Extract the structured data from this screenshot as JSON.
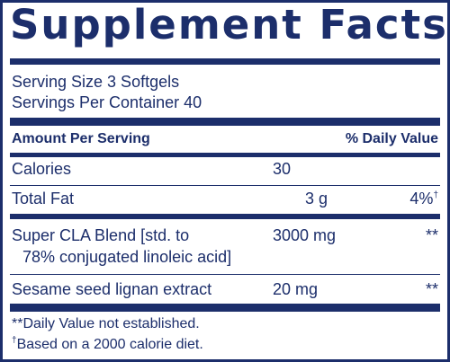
{
  "title": "Supplement Facts",
  "serving_size": "Serving Size 3 Softgels",
  "servings_per_container": "Servings Per Container 40",
  "header": {
    "amount_per_serving": "Amount Per Serving",
    "daily_value": "% Daily Value"
  },
  "rows": [
    {
      "label": "Calories",
      "amount": "30",
      "dv": ""
    },
    {
      "label": "Total Fat",
      "amount": "3 g",
      "dv": "4%",
      "dv_mark": "†"
    },
    {
      "label_line1": "Super CLA Blend [std. to",
      "label_line2": "78% conjugated linoleic acid]",
      "amount": "3000 mg",
      "dv": "**"
    },
    {
      "label": "Sesame seed lignan extract",
      "amount": "20 mg",
      "dv": "**"
    }
  ],
  "footnotes": {
    "note1": "**Daily Value not established.",
    "note2_mark": "†",
    "note2": "Based on a 2000 calorie diet."
  },
  "colors": {
    "ink": "#1c2e6b",
    "background": "#ffffff"
  }
}
